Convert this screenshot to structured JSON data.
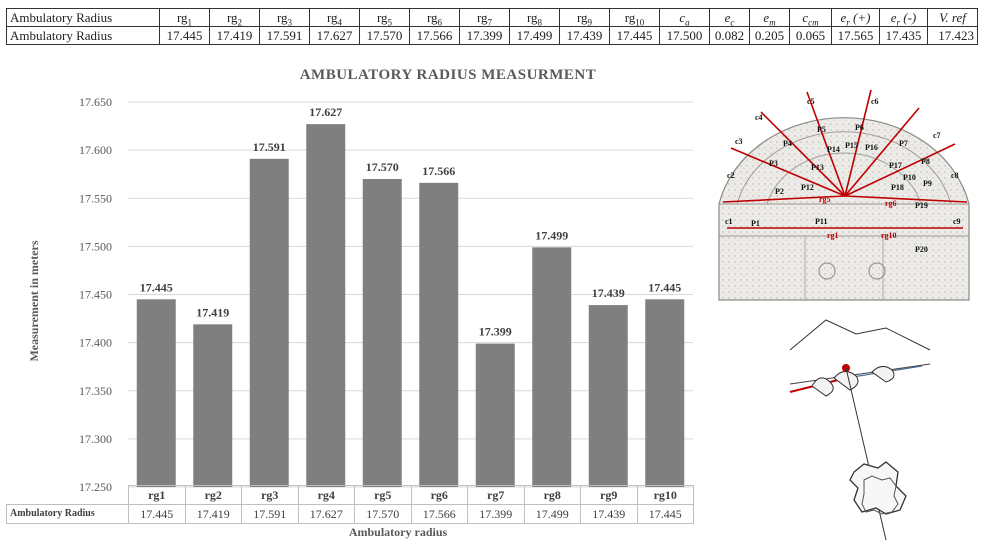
{
  "table": {
    "row_label": "Ambulatory Radius",
    "headers": [
      {
        "base": "rg",
        "sub": "1",
        "italic": false
      },
      {
        "base": "rg",
        "sub": "2",
        "italic": false
      },
      {
        "base": "rg",
        "sub": "3",
        "italic": false
      },
      {
        "base": "rg",
        "sub": "4",
        "italic": false
      },
      {
        "base": "rg",
        "sub": "5",
        "italic": false
      },
      {
        "base": "rg",
        "sub": "6",
        "italic": false
      },
      {
        "base": "rg",
        "sub": "7",
        "italic": false
      },
      {
        "base": "rg",
        "sub": "8",
        "italic": false
      },
      {
        "base": "rg",
        "sub": "9",
        "italic": false
      },
      {
        "base": "rg",
        "sub": "10",
        "italic": false
      },
      {
        "base": "c",
        "sub": "a",
        "italic": true
      },
      {
        "base": "e",
        "sub": "c",
        "italic": true
      },
      {
        "base": "e",
        "sub": "m",
        "italic": true
      },
      {
        "base": "c",
        "sub": "cm",
        "italic": true
      },
      {
        "base": "e",
        "sub": "r",
        "suffix": " (+)",
        "italic": true
      },
      {
        "base": "e",
        "sub": "r",
        "suffix": " (-)",
        "italic": true
      },
      {
        "base": "V. ref",
        "sub": "",
        "italic": true
      }
    ],
    "values": [
      "17.445",
      "17.419",
      "17.591",
      "17.627",
      "17.570",
      "17.566",
      "17.399",
      "17.499",
      "17.439",
      "17.445",
      "17.500",
      "0.082",
      "0.205",
      "0.065",
      "17.565",
      "17.435",
      "17.423"
    ]
  },
  "chart_data": {
    "type": "bar",
    "title": "AMBULATORY RADIUS MEASURMENT",
    "ylabel": "Measurement in meters",
    "xlabel": "Ambulatory  radius",
    "categories": [
      "rg1",
      "rg2",
      "rg3",
      "rg4",
      "rg5",
      "rg6",
      "rg7",
      "rg8",
      "rg9",
      "rg10"
    ],
    "values": [
      17.445,
      17.419,
      17.591,
      17.627,
      17.57,
      17.566,
      17.399,
      17.499,
      17.439,
      17.445
    ],
    "value_labels": [
      "17.445",
      "17.419",
      "17.591",
      "17.627",
      "17.570",
      "17.566",
      "17.399",
      "17.499",
      "17.439",
      "17.445"
    ],
    "ylim": [
      17.25,
      17.65
    ],
    "yticks": [
      "17.250",
      "17.300",
      "17.350",
      "17.400",
      "17.450",
      "17.500",
      "17.550",
      "17.600",
      "17.650"
    ],
    "series_name": "Ambulatory Radius",
    "bar_color": "#7f7f7f",
    "grid": true
  },
  "floorplan": {
    "labels_c": [
      "c1",
      "c2",
      "c3",
      "c4",
      "c5",
      "c6",
      "c7",
      "c8",
      "c9"
    ],
    "labels_p": [
      "P1",
      "P2",
      "P3",
      "P4",
      "P5",
      "P6",
      "P7",
      "P8",
      "P9",
      "P10",
      "P11",
      "P12",
      "P13",
      "P14",
      "P15",
      "P16",
      "P17",
      "P18",
      "P19",
      "P20"
    ],
    "labels_rg": [
      "rg5",
      "rg6",
      "rg1",
      "rg10"
    ],
    "accent": "#c00000"
  }
}
